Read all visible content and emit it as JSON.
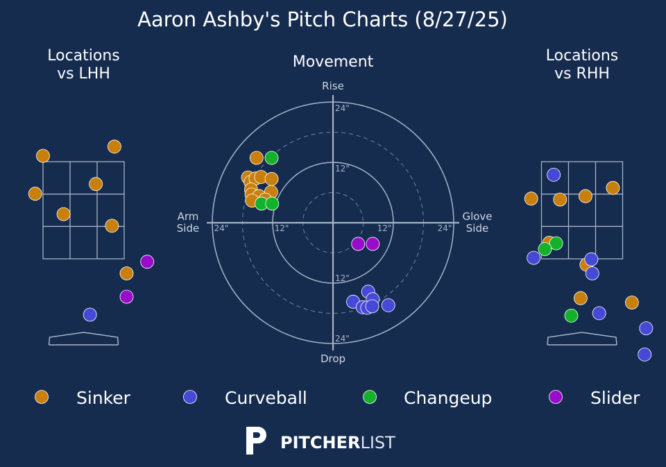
{
  "title": "Aaron Ashby's Pitch Charts (8/27/25)",
  "colors": {
    "background": "#152c4f",
    "Sinker": "#c97f0c",
    "Curveball": "#4648d6",
    "Changeup": "#12b22a",
    "Slider": "#9a0ccc",
    "grid": "#a9b4c6"
  },
  "legend": [
    {
      "name": "Sinker"
    },
    {
      "name": "Curveball"
    },
    {
      "name": "Changeup"
    },
    {
      "name": "Slider"
    }
  ],
  "brand": {
    "bold": "PITCHER",
    "light": "LIST"
  },
  "chart_data": [
    {
      "type": "scatter",
      "title": "Locations\nvs LHH",
      "title_lines": [
        "Locations",
        "vs LHH"
      ],
      "units": "ft",
      "xlim": [
        -2.4,
        2.4
      ],
      "ylim": [
        -0.55,
        4.4
      ],
      "strike_zone": {
        "x": [
          -0.83,
          0.83
        ],
        "z": [
          1.5,
          3.5
        ]
      },
      "series": [
        {
          "name": "Sinker",
          "points": [
            [
              -0.83,
              3.62
            ],
            [
              0.63,
              3.81
            ],
            [
              -0.99,
              2.84
            ],
            [
              0.25,
              3.04
            ],
            [
              -0.41,
              2.42
            ],
            [
              0.58,
              2.18
            ],
            [
              0.88,
              1.2
            ]
          ]
        },
        {
          "name": "Curveball",
          "points": [
            [
              0.13,
              0.35
            ]
          ]
        },
        {
          "name": "Changeup",
          "points": []
        },
        {
          "name": "Slider",
          "points": [
            [
              1.3,
              1.44
            ],
            [
              0.88,
              0.72
            ]
          ]
        }
      ]
    },
    {
      "type": "scatter",
      "title": "Movement",
      "units": "in",
      "axis_labels": {
        "top": "Rise",
        "bottom": "Drop",
        "left": "Arm\nSide",
        "left_lines": [
          "Arm",
          "Side"
        ],
        "right": "Glove\nSide",
        "right_lines": [
          "Glove",
          "Side"
        ]
      },
      "rings": [
        6,
        12,
        18,
        24
      ],
      "ring_labels": [
        "12\"",
        "24\""
      ],
      "range": 24,
      "series": [
        {
          "name": "Sinker",
          "points": [
            [
              -15.2,
              12.9
            ],
            [
              -16.9,
              9.0
            ],
            [
              -16.4,
              8.1
            ],
            [
              -15.4,
              8.8
            ],
            [
              -14.3,
              9.1
            ],
            [
              -12.2,
              8.7
            ],
            [
              -16.3,
              6.6
            ],
            [
              -16.2,
              5.6
            ],
            [
              -14.7,
              5.3
            ],
            [
              -12.3,
              6.1
            ],
            [
              -16.1,
              4.4
            ],
            [
              -13.5,
              4.6
            ]
          ]
        },
        {
          "name": "Curveball",
          "points": [
            [
              7.0,
              -13.7
            ],
            [
              7.9,
              -15.2
            ],
            [
              4.0,
              -15.7
            ],
            [
              5.9,
              -16.8
            ],
            [
              6.8,
              -16.9
            ],
            [
              7.8,
              -16.6
            ],
            [
              11.0,
              -16.4
            ]
          ]
        },
        {
          "name": "Changeup",
          "points": [
            [
              -12.2,
              12.9
            ],
            [
              -14.2,
              3.8
            ],
            [
              -12.1,
              3.8
            ]
          ]
        },
        {
          "name": "Slider",
          "points": [
            [
              5.0,
              -4.2
            ],
            [
              7.9,
              -4.2
            ]
          ]
        }
      ]
    },
    {
      "type": "scatter",
      "title": "Locations\nvs RHH",
      "title_lines": [
        "Locations",
        "vs RHH"
      ],
      "units": "ft",
      "xlim": [
        -2.4,
        2.4
      ],
      "ylim": [
        -0.55,
        4.4
      ],
      "strike_zone": {
        "x": [
          -0.83,
          0.83
        ],
        "z": [
          1.5,
          3.5
        ]
      },
      "series": [
        {
          "name": "Sinker",
          "points": [
            [
              -1.04,
              2.74
            ],
            [
              -0.45,
              2.72
            ],
            [
              0.07,
              2.79
            ],
            [
              0.63,
              2.96
            ],
            [
              -0.67,
              1.83
            ],
            [
              0.09,
              1.38
            ],
            [
              -0.03,
              0.69
            ],
            [
              1.02,
              0.6
            ]
          ]
        },
        {
          "name": "Curveball",
          "points": [
            [
              -0.58,
              3.23
            ],
            [
              -0.99,
              1.52
            ],
            [
              0.19,
              1.49
            ],
            [
              0.21,
              1.2
            ],
            [
              0.35,
              0.38
            ],
            [
              1.31,
              0.07
            ],
            [
              1.28,
              -0.47
            ]
          ]
        },
        {
          "name": "Changeup",
          "points": [
            [
              -0.53,
              1.82
            ],
            [
              -0.76,
              1.7
            ],
            [
              -0.22,
              0.33
            ]
          ]
        },
        {
          "name": "Slider",
          "points": []
        }
      ]
    }
  ]
}
